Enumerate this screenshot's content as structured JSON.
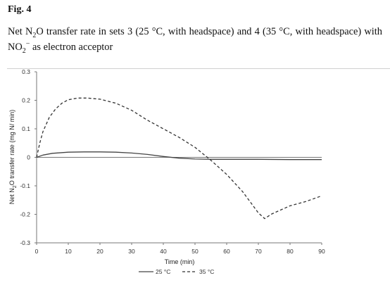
{
  "figure": {
    "label": "Fig. 4",
    "caption_part1": "Net N",
    "caption_sub1": "2",
    "caption_part2": "O transfer rate in sets 3 (25 °C, with headspace) and 4 (35 °C, with headspace) with NO",
    "caption_sub2": "2",
    "caption_sup": "−",
    "caption_part3": " as electron acceptor"
  },
  "chart_data": {
    "type": "line",
    "xlabel": "Time (min)",
    "ylabel": "Net N2O transfer rate (mg N/ min)",
    "ylabel_pre": "Net N",
    "ylabel_sub": "2",
    "ylabel_post": "O transfer rate (mg N/ min)",
    "xlim": [
      0,
      90
    ],
    "ylim": [
      -0.3,
      0.3
    ],
    "x_ticks": [
      "0",
      "10",
      "20",
      "30",
      "40",
      "50",
      "60",
      "70",
      "80",
      "90"
    ],
    "y_ticks": [
      "0.3",
      "0.2",
      "0.1",
      "0",
      "-0.1",
      "-0.2",
      "-0.3"
    ],
    "legend_position": "bottom",
    "series": [
      {
        "name": "25 °C",
        "style": "solid",
        "color": "#444444",
        "x": [
          0,
          2,
          5,
          10,
          15,
          20,
          25,
          30,
          35,
          40,
          45,
          50,
          55,
          60,
          70,
          80,
          90
        ],
        "y": [
          0,
          0.008,
          0.014,
          0.018,
          0.019,
          0.019,
          0.018,
          0.015,
          0.01,
          0.003,
          -0.003,
          -0.006,
          -0.007,
          -0.007,
          -0.007,
          -0.008,
          -0.008
        ]
      },
      {
        "name": "35 °C",
        "style": "dashed",
        "color": "#333333",
        "x": [
          0,
          1,
          2,
          4,
          6,
          8,
          10,
          13,
          16,
          20,
          25,
          30,
          35,
          40,
          45,
          50,
          55,
          60,
          65,
          68,
          70,
          72,
          74,
          76,
          80,
          85,
          90
        ],
        "y": [
          0,
          0.05,
          0.09,
          0.14,
          0.17,
          0.19,
          0.202,
          0.208,
          0.208,
          0.204,
          0.19,
          0.165,
          0.13,
          0.1,
          0.07,
          0.035,
          -0.01,
          -0.06,
          -0.12,
          -0.165,
          -0.195,
          -0.215,
          -0.2,
          -0.19,
          -0.17,
          -0.155,
          -0.135
        ]
      }
    ]
  }
}
